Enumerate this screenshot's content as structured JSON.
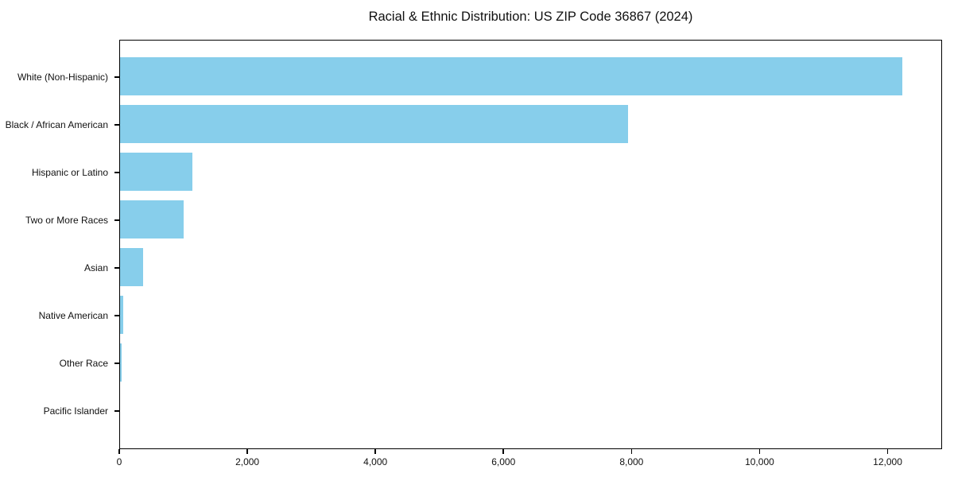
{
  "chart_data": {
    "type": "bar",
    "orientation": "horizontal",
    "title": "Racial & Ethnic Distribution: US ZIP Code 36867 (2024)",
    "categories": [
      "White (Non-Hispanic)",
      "Black / African American",
      "Hispanic or Latino",
      "Two or More Races",
      "Asian",
      "Native American",
      "Other Race",
      "Pacific Islander"
    ],
    "values": [
      12240,
      7950,
      1130,
      1000,
      360,
      50,
      30,
      0
    ],
    "xlabel": "",
    "ylabel": "",
    "xlim": [
      0,
      12850
    ],
    "xticks": [
      0,
      2000,
      4000,
      6000,
      8000,
      10000,
      12000
    ],
    "xtick_labels": [
      "0",
      "2,000",
      "4,000",
      "6,000",
      "8,000",
      "10,000",
      "12,000"
    ],
    "bar_color": "#87CEEB",
    "axis_color": "#000000",
    "text_color": "#111111",
    "background_color": "#FFFFFF",
    "grid": false,
    "legend": null
  }
}
